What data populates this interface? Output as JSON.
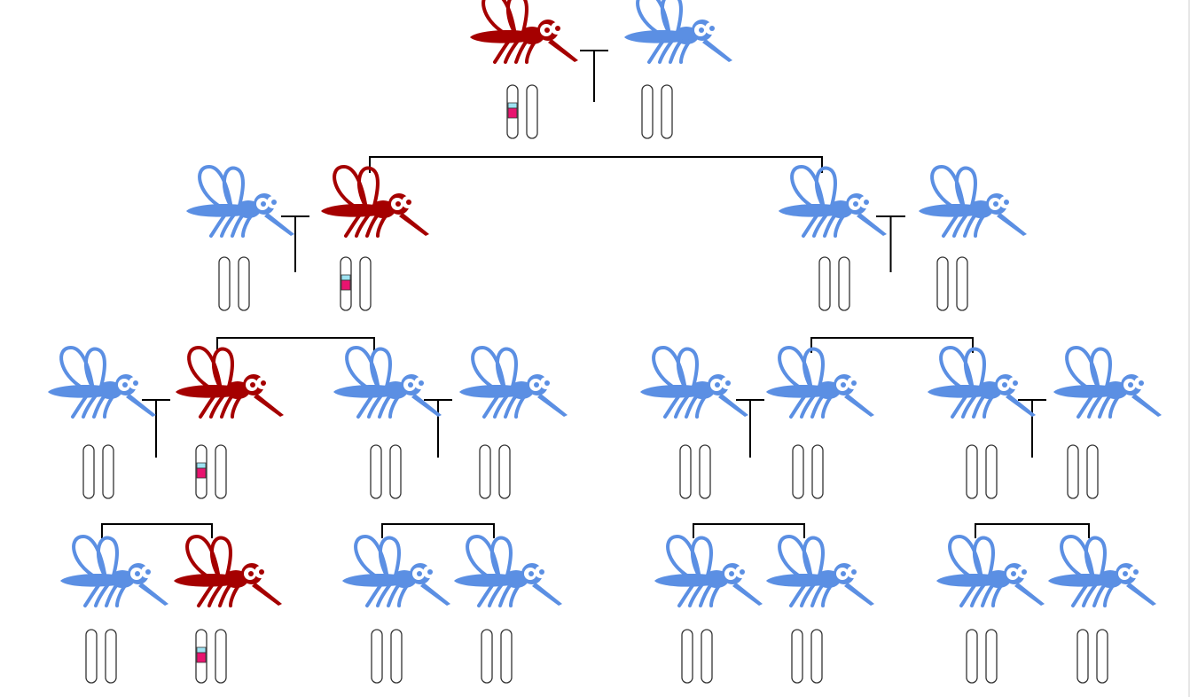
{
  "colors": {
    "carrier": "#a50000",
    "wildtype": "#5b8fe3",
    "line": "#000000",
    "chromosome_stroke": "#333333",
    "marker_cyan": "#9ee3f2",
    "marker_magenta": "#e8146f"
  },
  "legend_semantics": {
    "carrier_color_name": "red",
    "wildtype_color_name": "blue"
  },
  "pedigree": {
    "generations": [
      {
        "index": 0,
        "individuals": [
          {
            "id": "g0-a",
            "carrier": true
          },
          {
            "id": "g0-b",
            "carrier": false
          }
        ],
        "crosses": [
          {
            "id": "cross-0",
            "parents": [
              "g0-a",
              "g0-b"
            ]
          }
        ]
      },
      {
        "index": 1,
        "individuals": [
          {
            "id": "g1-a",
            "carrier": false
          },
          {
            "id": "g1-b",
            "carrier": true
          },
          {
            "id": "g1-c",
            "carrier": false
          },
          {
            "id": "g1-d",
            "carrier": false
          }
        ],
        "crosses": [
          {
            "id": "cross-1a",
            "parents": [
              "g1-a",
              "g1-b"
            ]
          },
          {
            "id": "cross-1b",
            "parents": [
              "g1-c",
              "g1-d"
            ]
          }
        ],
        "from_cross": "cross-0",
        "offspring": [
          "g1-b",
          "g1-c"
        ]
      },
      {
        "index": 2,
        "individuals": [
          {
            "id": "g2-a",
            "carrier": false
          },
          {
            "id": "g2-b",
            "carrier": true
          },
          {
            "id": "g2-c",
            "carrier": false
          },
          {
            "id": "g2-d",
            "carrier": false
          },
          {
            "id": "g2-e",
            "carrier": false
          },
          {
            "id": "g2-f",
            "carrier": false
          },
          {
            "id": "g2-g",
            "carrier": false
          },
          {
            "id": "g2-h",
            "carrier": false
          }
        ],
        "crosses": [
          {
            "id": "cross-2a",
            "parents": [
              "g2-a",
              "g2-b"
            ]
          },
          {
            "id": "cross-2b",
            "parents": [
              "g2-c",
              "g2-d"
            ]
          },
          {
            "id": "cross-2c",
            "parents": [
              "g2-e",
              "g2-f"
            ]
          },
          {
            "id": "cross-2d",
            "parents": [
              "g2-g",
              "g2-h"
            ]
          }
        ]
      },
      {
        "index": 3,
        "individuals": [
          {
            "id": "g3-a",
            "carrier": false
          },
          {
            "id": "g3-b",
            "carrier": true
          },
          {
            "id": "g3-c",
            "carrier": false
          },
          {
            "id": "g3-d",
            "carrier": false
          },
          {
            "id": "g3-e",
            "carrier": false
          },
          {
            "id": "g3-f",
            "carrier": false
          },
          {
            "id": "g3-g",
            "carrier": false
          },
          {
            "id": "g3-h",
            "carrier": false
          }
        ]
      }
    ]
  }
}
